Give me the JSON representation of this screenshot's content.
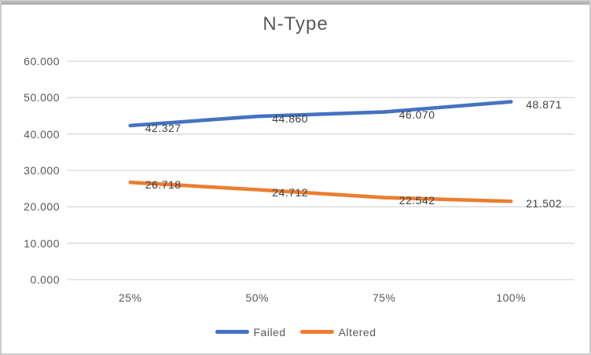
{
  "chart_data": {
    "type": "line",
    "title": "N-Type",
    "categories": [
      "25%",
      "50%",
      "75%",
      "100%"
    ],
    "series": [
      {
        "name": "Failed",
        "color": "#4472C4",
        "values": [
          42.327,
          44.86,
          46.07,
          48.871
        ],
        "value_labels": [
          "42.327",
          "44.860",
          "46.070",
          "48.871"
        ]
      },
      {
        "name": "Altered",
        "color": "#ED7D31",
        "values": [
          26.718,
          24.712,
          22.542,
          21.502
        ],
        "value_labels": [
          "26.718",
          "24.712",
          "22.542",
          "21.502"
        ]
      }
    ],
    "y_axis": {
      "tick_values": [
        0,
        10,
        20,
        30,
        40,
        50,
        60
      ],
      "tick_labels": [
        "0.000",
        "10.000",
        "20.000",
        "30.000",
        "40.000",
        "50.000",
        "60.000"
      ]
    },
    "ylim": [
      0,
      60
    ],
    "xlabel": "",
    "ylabel": "",
    "grid": true,
    "legend_position": "bottom",
    "colors": {
      "gridline": "#D9D9D9",
      "axis_text": "#595959",
      "title_text": "#595959",
      "data_label_text": "#404040"
    }
  }
}
